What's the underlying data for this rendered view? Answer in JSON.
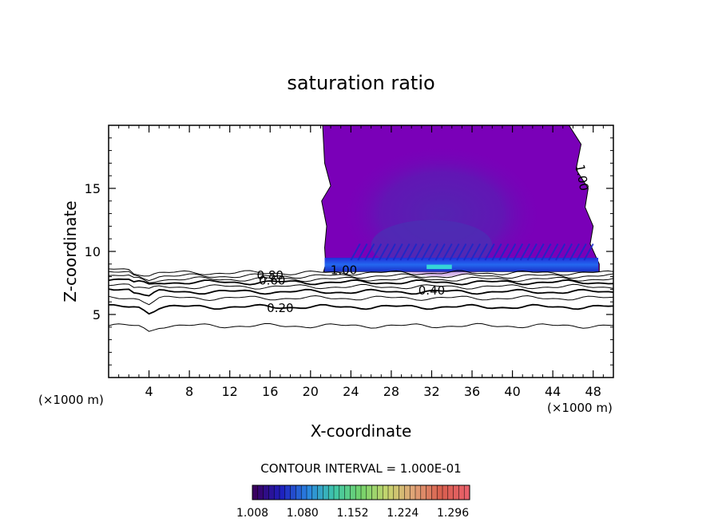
{
  "chart_data": {
    "type": "contour",
    "title": "saturation ratio",
    "xlabel": "X-coordinate",
    "ylabel": "Z-coordinate",
    "x_unit_label": "(×1000 m)",
    "xlim": [
      0,
      50
    ],
    "ylim": [
      0,
      20
    ],
    "x_ticks": [
      4,
      8,
      12,
      16,
      20,
      24,
      28,
      32,
      36,
      40,
      44,
      48
    ],
    "y_ticks": [
      5,
      10,
      15
    ],
    "x_tick_labels": [
      "4",
      "8",
      "12",
      "16",
      "20",
      "24",
      "28",
      "32",
      "36",
      "40",
      "44",
      "48"
    ],
    "y_tick_labels": [
      "5",
      "10",
      "15"
    ],
    "contour_interval_text": "CONTOUR INTERVAL = 1.000E-01",
    "contour_levels": [
      0.1,
      0.2,
      0.3,
      0.4,
      0.5,
      0.6,
      0.7,
      0.8,
      0.9
    ],
    "contour_heights_z": [
      4.1,
      5.6,
      6.3,
      6.8,
      7.2,
      7.55,
      7.8,
      8.05,
      8.3
    ],
    "contour_labels": [
      {
        "text": "0.20",
        "x": 17.0,
        "z": 5.5
      },
      {
        "text": "0.40",
        "x": 32.0,
        "z": 6.9
      },
      {
        "text": "0.60",
        "x": 16.2,
        "z": 7.7
      },
      {
        "text": "0.80",
        "x": 16.0,
        "z": 8.1
      },
      {
        "text": "1.00",
        "x": 23.3,
        "z": 8.5
      },
      {
        "text": "1.00",
        "x": 46.5,
        "z": 15.8
      }
    ],
    "saturated_region": {
      "x_range": [
        21.2,
        48.6
      ],
      "z_range": [
        8.4,
        20
      ],
      "fill_level": 1.008,
      "fill_color": "#7a00b8"
    },
    "colorbar": {
      "ticks": [
        "1.008",
        "1.080",
        "1.152",
        "1.224",
        "1.296"
      ],
      "min": 1.008,
      "max": 1.32,
      "colors": [
        "#3a0060",
        "#1e1fbf",
        "#2a86e0",
        "#3fc7a8",
        "#73d36b",
        "#c7d56e",
        "#e0a277",
        "#d85f4d",
        "#e8606a"
      ]
    }
  }
}
